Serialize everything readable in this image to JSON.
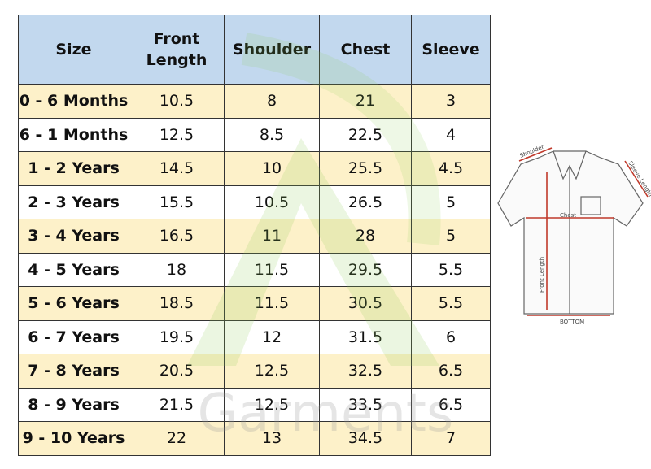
{
  "table": {
    "header": [
      "Size",
      "Front Length",
      "Shoulder",
      "Chest",
      "Sleeve"
    ],
    "rows": [
      [
        "0 - 6 Months",
        "10.5",
        "8",
        "21",
        "3"
      ],
      [
        "6 - 1 Months",
        "12.5",
        "8.5",
        "22.5",
        "4"
      ],
      [
        "1 - 2 Years",
        "14.5",
        "10",
        "25.5",
        "4.5"
      ],
      [
        "2 - 3 Years",
        "15.5",
        "10.5",
        "26.5",
        "5"
      ],
      [
        "3 - 4 Years",
        "16.5",
        "11",
        "28",
        "5"
      ],
      [
        "4 - 5 Years",
        "18",
        "11.5",
        "29.5",
        "5.5"
      ],
      [
        "5 - 6 Years",
        "18.5",
        "11.5",
        "30.5",
        "5.5"
      ],
      [
        "6 - 7 Years",
        "19.5",
        "12",
        "31.5",
        "6"
      ],
      [
        "7 - 8 Years",
        "20.5",
        "12.5",
        "32.5",
        "6.5"
      ],
      [
        "8 - 9 Years",
        "21.5",
        "12.5",
        "33.5",
        "6.5"
      ],
      [
        "9 - 10 Years",
        "22",
        "13",
        "34.5",
        "7"
      ]
    ]
  },
  "watermark": "Garments",
  "diagram": {
    "shoulder": "Shoulder",
    "sleeve_length": "Sleeve Length",
    "chest": "Chest",
    "front_length": "Front Length",
    "bottom": "BOTTOM"
  }
}
